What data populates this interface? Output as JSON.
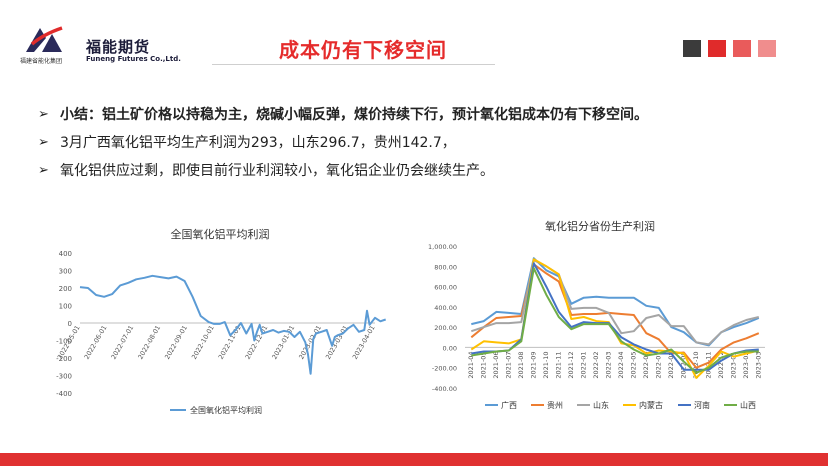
{
  "header": {
    "logo_sub": "福建省能化集团",
    "logo_cn": "福能期货",
    "logo_en": "Funeng Futures Co.,Ltd.",
    "title": "成本仍有下移空间",
    "square_colors": [
      "#3b3b3b",
      "#e02b2b",
      "#e95b5b",
      "#f08d8d"
    ]
  },
  "bullets": [
    {
      "arrow": "➢",
      "label": "小结：",
      "text": "铝土矿价格以持稳为主，烧碱小幅反弹，煤价持续下行，预计氧化铝成本仍有下移空间。",
      "bold": true
    },
    {
      "arrow": "➢",
      "label": "",
      "text": "3月广西氧化铝平均生产利润为293，山东296.7，贵州142.7，",
      "bold": false
    },
    {
      "arrow": "➢",
      "label": "",
      "text": "氧化铝供应过剩，即使目前行业利润较小，氧化铝企业仍会继续生产。",
      "bold": false
    }
  ],
  "footer": {
    "bar_color": "#e03131"
  },
  "chart_data": [
    {
      "type": "line",
      "title": "全国氧化铝平均利润",
      "ylim": [
        -400,
        400
      ],
      "yticks": [
        400,
        300,
        200,
        100,
        0,
        -100,
        -200,
        -300,
        -400
      ],
      "xticks": [
        "2022-05-01",
        "2022-06-01",
        "2022-07-01",
        "2022-08-01",
        "2022-09-01",
        "2022-10-01",
        "2022-11-01",
        "2022-12-01",
        "2023-01-01",
        "2023-02-01",
        "2023-03-01",
        "2023-04-01"
      ],
      "legend_position": "bottom",
      "series": [
        {
          "name": "全国氧化铝平均利润",
          "color": "#5b9bd5",
          "x": [
            0,
            0.3,
            0.6,
            0.9,
            1.2,
            1.5,
            1.8,
            2.1,
            2.4,
            2.7,
            3.0,
            3.3,
            3.6,
            3.9,
            4.2,
            4.5,
            4.8,
            5.0,
            5.2,
            5.4,
            5.6,
            5.8,
            6.0,
            6.2,
            6.4,
            6.5,
            6.6,
            6.7,
            6.8,
            7.0,
            7.2,
            7.4,
            7.6,
            7.8,
            8.0,
            8.2,
            8.4,
            8.5,
            8.6,
            8.7,
            8.8,
            9.0,
            9.2,
            9.4,
            9.5,
            9.6,
            9.8,
            10.0,
            10.2,
            10.4,
            10.6,
            10.7,
            10.8,
            11.0,
            11.2,
            11.4
          ],
          "y": [
            205,
            200,
            160,
            150,
            165,
            215,
            230,
            250,
            258,
            270,
            262,
            255,
            265,
            240,
            150,
            40,
            5,
            -5,
            -5,
            5,
            -70,
            -40,
            0,
            -60,
            -5,
            -100,
            -50,
            -10,
            -60,
            -50,
            -40,
            -55,
            -45,
            -50,
            -80,
            -50,
            -110,
            -180,
            -290,
            -90,
            -60,
            -50,
            -40,
            -130,
            -80,
            -70,
            -60,
            -30,
            -10,
            -50,
            -40,
            70,
            -10,
            30,
            10,
            20
          ]
        }
      ]
    },
    {
      "type": "line",
      "title": "氧化铝分省份生产利润",
      "ylim": [
        -400,
        1000
      ],
      "yticks": [
        "1,000.00",
        "800.00",
        "600.00",
        "400.00",
        "200.00",
        "0.00",
        "-200.00",
        "-400.00"
      ],
      "categories": [
        "2021-04",
        "2021-05",
        "2021-06",
        "2021-07",
        "2021-08",
        "2021-09",
        "2021-10",
        "2021-11",
        "2021-12",
        "2022-01",
        "2022-02",
        "2022-03",
        "2022-04",
        "2022-05",
        "2022-06",
        "2022-07",
        "2022-08",
        "2022-09",
        "2022-10",
        "2022-11",
        "2022-12",
        "2023-01",
        "2023-02",
        "2023-03"
      ],
      "legend_position": "bottom",
      "series": [
        {
          "name": "广西",
          "color": "#5b9bd5",
          "values": [
            230,
            260,
            350,
            340,
            330,
            880,
            760,
            700,
            430,
            490,
            500,
            490,
            490,
            490,
            410,
            390,
            200,
            150,
            50,
            20,
            150,
            200,
            240,
            290
          ]
        },
        {
          "name": "贵州",
          "color": "#ed7d31",
          "values": [
            100,
            200,
            290,
            300,
            310,
            820,
            730,
            650,
            320,
            330,
            330,
            340,
            330,
            320,
            140,
            80,
            -60,
            -50,
            -200,
            -150,
            -20,
            50,
            90,
            140
          ]
        },
        {
          "name": "山东",
          "color": "#a5a5a5",
          "values": [
            160,
            200,
            240,
            240,
            250,
            860,
            800,
            720,
            380,
            390,
            390,
            340,
            140,
            160,
            290,
            320,
            210,
            210,
            50,
            30,
            150,
            220,
            270,
            300
          ]
        },
        {
          "name": "内蒙古",
          "color": "#ffc000",
          "values": [
            -20,
            60,
            50,
            40,
            80,
            870,
            800,
            720,
            280,
            300,
            260,
            250,
            40,
            20,
            -60,
            -30,
            -40,
            -60,
            -300,
            -180,
            -40,
            -90,
            -60,
            -30
          ]
        },
        {
          "name": "河南",
          "color": "#4472c4",
          "values": [
            -60,
            -40,
            -40,
            -30,
            80,
            830,
            600,
            350,
            200,
            250,
            240,
            240,
            100,
            30,
            -20,
            -60,
            -60,
            -220,
            -220,
            -220,
            -130,
            -60,
            -30,
            -20
          ]
        },
        {
          "name": "山西",
          "color": "#70ad47",
          "values": [
            -80,
            -60,
            -40,
            -30,
            60,
            780,
            520,
            300,
            180,
            230,
            230,
            230,
            60,
            -20,
            -80,
            -60,
            -20,
            -140,
            -250,
            -200,
            -100,
            -60,
            -40,
            -40
          ]
        }
      ]
    }
  ]
}
